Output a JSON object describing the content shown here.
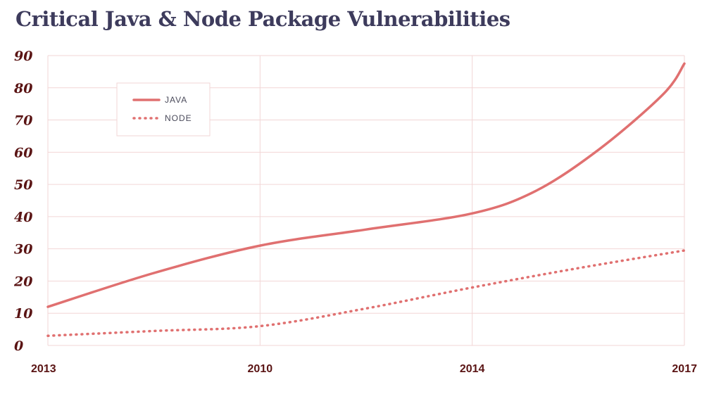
{
  "chart_data": {
    "type": "line",
    "title": "Critical Java & Node Package Vulnerabilities",
    "categories": [
      "2013",
      "2010",
      "2014",
      "2017"
    ],
    "ylim": [
      0,
      90
    ],
    "yticks": [
      0,
      10,
      20,
      30,
      40,
      50,
      60,
      70,
      80,
      90
    ],
    "grid": true,
    "legend_position": "top-left",
    "colors": {
      "line": "#e07070",
      "grid": "#f2d6d6",
      "tick_text": "#5a1414",
      "title": "#3d3b5c"
    },
    "series": [
      {
        "name": "JAVA",
        "style": "solid",
        "points": [
          [
            0,
            12
          ],
          [
            0.5,
            22.5
          ],
          [
            1,
            31
          ],
          [
            1.5,
            36
          ],
          [
            2,
            41
          ],
          [
            2.3,
            48
          ],
          [
            2.6,
            61
          ],
          [
            2.9,
            78
          ],
          [
            3,
            87.5
          ]
        ]
      },
      {
        "name": "NODE",
        "style": "dotted",
        "points": [
          [
            0,
            3
          ],
          [
            0.5,
            4.5
          ],
          [
            1,
            6
          ],
          [
            1.5,
            11.5
          ],
          [
            2,
            18
          ],
          [
            2.5,
            24
          ],
          [
            3,
            29.5
          ]
        ]
      }
    ]
  }
}
